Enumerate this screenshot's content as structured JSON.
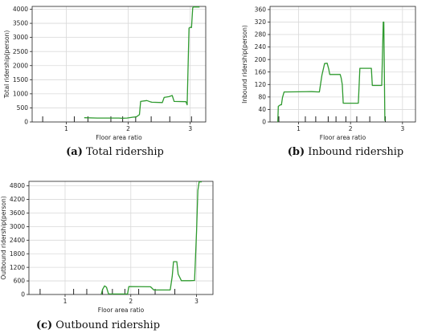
{
  "chart_data": [
    {
      "id": "a",
      "type": "line",
      "caption_label": "(a)",
      "caption_text": "Total ridership",
      "xlabel": "Floor area ratio",
      "ylabel": "Total ridership(person)",
      "xlim": [
        0.45,
        3.25
      ],
      "ylim": [
        0,
        4100
      ],
      "xticks": [
        1,
        2,
        3
      ],
      "yticks": [
        0,
        500,
        1000,
        1500,
        2000,
        2500,
        3000,
        3500,
        4000
      ],
      "grid": true,
      "rug": [
        0.62,
        1.13,
        1.35,
        1.72,
        1.91,
        2.12,
        2.37,
        2.67,
        3.02
      ],
      "series": [
        {
          "x": [
            1.29,
            1.5,
            1.85,
            1.9,
            1.98,
            2.08,
            2.13,
            2.18,
            2.2,
            2.3,
            2.35,
            2.38,
            2.55,
            2.58,
            2.66,
            2.71,
            2.74,
            2.93,
            2.95,
            2.98,
            3.0,
            3.02,
            3.04,
            3.05,
            3.08,
            3.15
          ],
          "y": [
            150,
            140,
            140,
            130,
            140,
            170,
            180,
            260,
            730,
            760,
            720,
            700,
            690,
            870,
            900,
            940,
            730,
            720,
            610,
            3330,
            3360,
            3350,
            4050,
            4080,
            4080,
            4080
          ]
        }
      ]
    },
    {
      "id": "b",
      "type": "line",
      "caption_label": "(b)",
      "caption_text": "Inbound ridership",
      "xlabel": "Floor area ratio",
      "ylabel": "Inbound ridership(person)",
      "xlim": [
        0.45,
        3.25
      ],
      "ylim": [
        0,
        370
      ],
      "xticks": [
        1,
        2,
        3
      ],
      "yticks": [
        0,
        40,
        80,
        120,
        160,
        200,
        240,
        280,
        320,
        360
      ],
      "grid": true,
      "rug": [
        0.62,
        1.13,
        1.33,
        1.57,
        1.72,
        1.91,
        2.12,
        2.37,
        2.67
      ],
      "series": [
        {
          "x": [
            0.6,
            0.61,
            0.65,
            0.67,
            0.69,
            0.72,
            1.25,
            1.4,
            1.45,
            1.5,
            1.55,
            1.58,
            1.6,
            1.8,
            1.82,
            1.84,
            1.86,
            2.15,
            2.18,
            2.4,
            2.42,
            2.6,
            2.63,
            2.64,
            2.66,
            2.67
          ],
          "y": [
            0,
            50,
            55,
            55,
            78,
            96,
            97,
            96,
            150,
            187,
            188,
            170,
            152,
            152,
            140,
            120,
            60,
            60,
            172,
            172,
            117,
            117,
            320,
            320,
            5,
            5
          ]
        }
      ]
    },
    {
      "id": "c",
      "type": "line",
      "caption_label": "(c)",
      "caption_text": "Outbound ridership",
      "xlabel": "Floor area ratio",
      "ylabel": "Outbound ridership(person)",
      "xlim": [
        0.45,
        3.25
      ],
      "ylim": [
        0,
        5000
      ],
      "xticks": [
        1,
        2,
        3
      ],
      "yticks": [
        0,
        600,
        1200,
        1800,
        2400,
        3000,
        3600,
        4200,
        4800
      ],
      "grid": true,
      "rug": [
        0.62,
        1.13,
        1.33,
        1.57,
        1.72,
        1.91,
        2.12,
        2.37,
        2.67
      ],
      "series": [
        {
          "x": [
            1.55,
            1.57,
            1.6,
            1.63,
            1.66,
            1.68,
            1.72,
            1.95,
            1.97,
            2.3,
            2.35,
            2.6,
            2.63,
            2.65,
            2.7,
            2.72,
            2.77,
            2.9,
            2.97,
            3.0,
            3.02,
            3.04,
            3.08
          ],
          "y": [
            0,
            220,
            380,
            320,
            30,
            20,
            20,
            20,
            350,
            340,
            200,
            200,
            800,
            1450,
            1450,
            900,
            610,
            610,
            620,
            2800,
            4600,
            4980,
            4980
          ]
        }
      ]
    }
  ]
}
